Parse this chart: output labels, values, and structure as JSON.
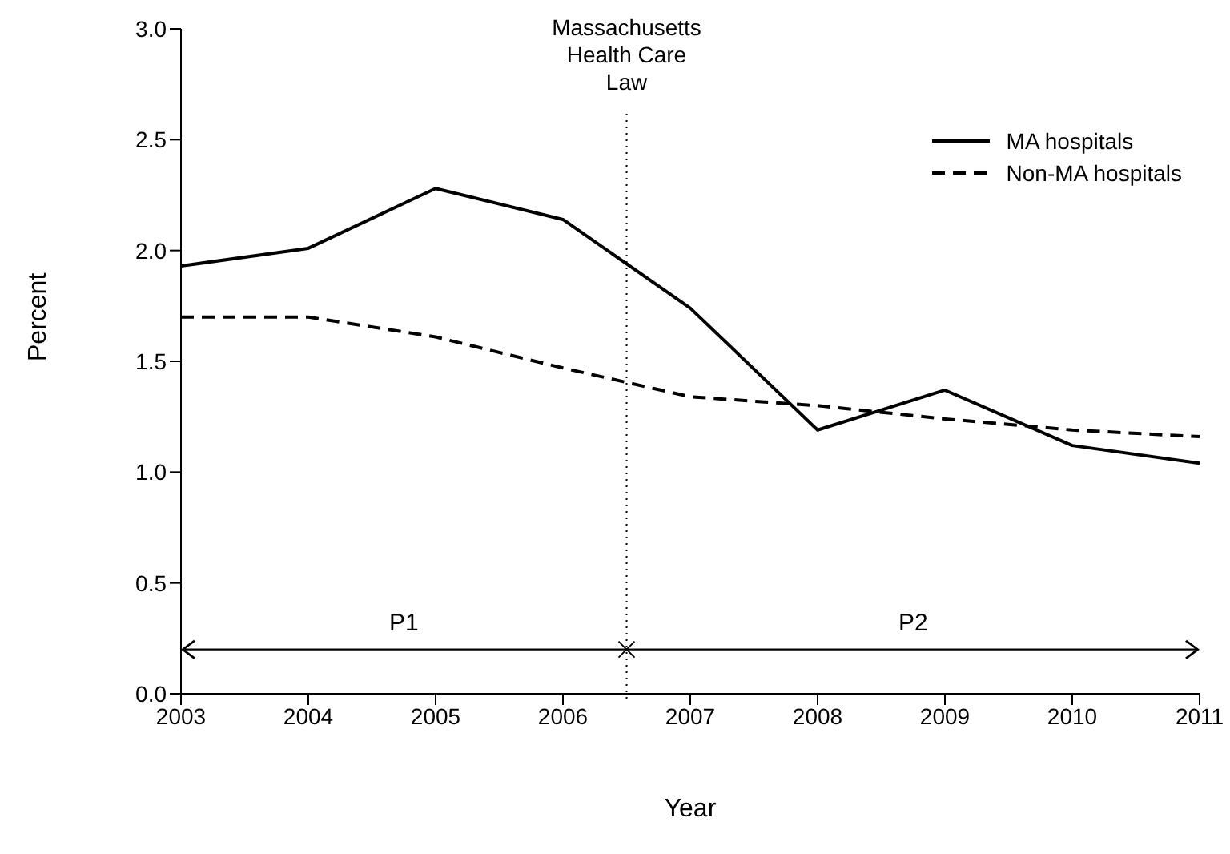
{
  "chart_data": {
    "type": "line",
    "xlabel": "Year",
    "ylabel": "Percent",
    "x": [
      2003,
      2004,
      2005,
      2006,
      2007,
      2008,
      2009,
      2010,
      2011
    ],
    "series": [
      {
        "name": "MA hospitals",
        "color": "#000000",
        "line_style": "solid",
        "values": [
          1.93,
          2.01,
          2.28,
          2.14,
          1.74,
          1.19,
          1.37,
          1.12,
          1.04
        ]
      },
      {
        "name": "Non-MA hospitals",
        "color": "#000000",
        "line_style": "dashed",
        "values": [
          1.7,
          1.7,
          1.61,
          1.47,
          1.34,
          1.3,
          1.24,
          1.19,
          1.16
        ]
      }
    ],
    "xlim": [
      2003,
      2011
    ],
    "xticks": [
      2003,
      2004,
      2005,
      2006,
      2007,
      2008,
      2009,
      2010,
      2011
    ],
    "ylim": [
      0,
      3
    ],
    "yticks": [
      {
        "value": 0,
        "label": "0.0"
      },
      {
        "value": 0.5,
        "label": "0.5"
      },
      {
        "value": 1,
        "label": "1.0"
      },
      {
        "value": 1.5,
        "label": "1.5"
      },
      {
        "value": 2,
        "label": "2.0"
      },
      {
        "value": 2.5,
        "label": "2.5"
      },
      {
        "value": 3,
        "label": "3.0"
      }
    ],
    "ref_lines": [
      {
        "axis": "x",
        "value": 2006.5,
        "label": "Massachusetts\nHealth Care\nLaw",
        "line_style": "dotted",
        "color": "#000000"
      }
    ],
    "annotations": [
      "P1",
      "P2"
    ],
    "grid": false,
    "legend": "top right",
    "marker": "none"
  }
}
